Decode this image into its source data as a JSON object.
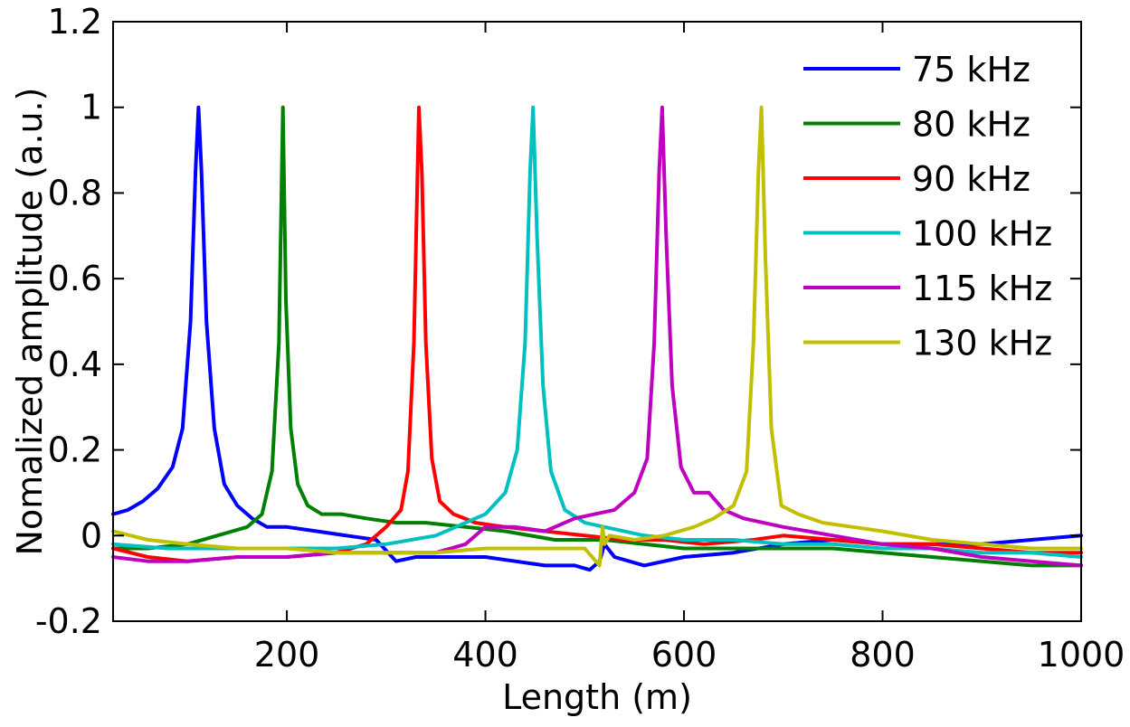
{
  "chart_data": {
    "type": "line",
    "title": "",
    "xlabel": "Length (m)",
    "ylabel": "Nomalized amplitude (a.u.)",
    "xlim": [
      25,
      1000
    ],
    "ylim": [
      -0.2,
      1.2
    ],
    "x_ticks": [
      200,
      400,
      600,
      800,
      1000
    ],
    "y_ticks": [
      -0.2,
      0,
      0.2,
      0.4,
      0.6,
      0.8,
      1,
      1.2
    ],
    "x_tick_labels": [
      "200",
      "400",
      "600",
      "800",
      "1000"
    ],
    "y_tick_labels": [
      "-0.2",
      "0",
      "0.2",
      "0.4",
      "0.6",
      "0.8",
      "1",
      "1.2"
    ],
    "grid": false,
    "legend_position": "top-right",
    "series": [
      {
        "name": "75 kHz",
        "color": "#0000ff",
        "x": [
          25,
          40,
          55,
          70,
          85,
          95,
          103,
          108,
          111,
          114,
          119,
          127,
          137,
          150,
          165,
          180,
          200,
          230,
          260,
          290,
          310,
          330,
          360,
          400,
          430,
          460,
          490,
          505,
          515,
          520,
          530,
          560,
          600,
          650,
          700,
          750,
          800,
          850,
          900,
          950,
          1000
        ],
        "y": [
          0.05,
          0.06,
          0.08,
          0.11,
          0.16,
          0.25,
          0.5,
          0.85,
          1.0,
          0.85,
          0.5,
          0.25,
          0.12,
          0.07,
          0.04,
          0.02,
          0.02,
          0.01,
          0.0,
          -0.01,
          -0.06,
          -0.05,
          -0.05,
          -0.05,
          -0.06,
          -0.07,
          -0.07,
          -0.08,
          -0.06,
          -0.02,
          -0.05,
          -0.07,
          -0.05,
          -0.04,
          -0.02,
          -0.01,
          -0.02,
          -0.02,
          -0.02,
          -0.01,
          0.0
        ]
      },
      {
        "name": "80 kHz",
        "color": "#008000",
        "x": [
          25,
          60,
          100,
          130,
          160,
          175,
          185,
          192,
          196,
          199,
          204,
          211,
          221,
          235,
          255,
          280,
          310,
          340,
          380,
          420,
          470,
          520,
          560,
          600,
          650,
          700,
          750,
          800,
          850,
          900,
          950,
          1000
        ],
        "y": [
          -0.03,
          -0.03,
          -0.02,
          0.0,
          0.02,
          0.05,
          0.15,
          0.45,
          1.0,
          0.55,
          0.25,
          0.12,
          0.07,
          0.05,
          0.05,
          0.04,
          0.03,
          0.03,
          0.02,
          0.01,
          -0.01,
          -0.01,
          -0.02,
          -0.03,
          -0.03,
          -0.03,
          -0.03,
          -0.04,
          -0.05,
          -0.06,
          -0.07,
          -0.07
        ]
      },
      {
        "name": "90 kHz",
        "color": "#ff0000",
        "x": [
          25,
          60,
          100,
          150,
          200,
          250,
          280,
          300,
          315,
          322,
          328,
          333,
          336,
          340,
          346,
          354,
          368,
          390,
          420,
          460,
          500,
          540,
          580,
          620,
          670,
          700,
          750,
          800,
          850,
          900,
          950,
          1000
        ],
        "y": [
          -0.03,
          -0.05,
          -0.06,
          -0.05,
          -0.05,
          -0.04,
          -0.02,
          0.02,
          0.06,
          0.15,
          0.45,
          1.0,
          0.85,
          0.45,
          0.18,
          0.08,
          0.05,
          0.03,
          0.02,
          0.01,
          0.0,
          -0.01,
          -0.01,
          -0.02,
          -0.01,
          0.0,
          -0.01,
          -0.02,
          -0.02,
          -0.03,
          -0.04,
          -0.04
        ]
      },
      {
        "name": "100 kHz",
        "color": "#00c0c0",
        "x": [
          25,
          80,
          150,
          200,
          250,
          300,
          350,
          380,
          400,
          420,
          432,
          440,
          445,
          448,
          452,
          458,
          466,
          480,
          500,
          520,
          560,
          600,
          650,
          700,
          750,
          800,
          850,
          900,
          950,
          1000
        ],
        "y": [
          -0.02,
          -0.03,
          -0.03,
          -0.03,
          -0.03,
          -0.02,
          0.0,
          0.03,
          0.05,
          0.1,
          0.2,
          0.45,
          0.85,
          1.0,
          0.7,
          0.35,
          0.15,
          0.06,
          0.03,
          0.02,
          0.0,
          -0.01,
          -0.01,
          -0.02,
          -0.02,
          -0.03,
          -0.03,
          -0.04,
          -0.04,
          -0.05
        ]
      },
      {
        "name": "115 kHz",
        "color": "#c000c0",
        "x": [
          25,
          60,
          100,
          150,
          200,
          250,
          300,
          350,
          380,
          400,
          430,
          460,
          490,
          510,
          530,
          550,
          563,
          570,
          575,
          578,
          582,
          588,
          597,
          610,
          625,
          640,
          660,
          700,
          750,
          800,
          850,
          900,
          950,
          1000
        ],
        "y": [
          -0.05,
          -0.06,
          -0.06,
          -0.05,
          -0.05,
          -0.04,
          -0.04,
          -0.04,
          -0.02,
          0.02,
          0.02,
          0.01,
          0.04,
          0.05,
          0.06,
          0.1,
          0.18,
          0.45,
          0.85,
          1.0,
          0.7,
          0.35,
          0.16,
          0.1,
          0.1,
          0.06,
          0.04,
          0.02,
          0.0,
          -0.02,
          -0.03,
          -0.05,
          -0.06,
          -0.07
        ]
      },
      {
        "name": "130 kHz",
        "color": "#c0c000",
        "x": [
          25,
          60,
          100,
          150,
          200,
          250,
          300,
          350,
          400,
          450,
          500,
          515,
          518,
          520,
          525,
          550,
          580,
          610,
          630,
          650,
          663,
          670,
          675,
          678,
          682,
          688,
          698,
          715,
          740,
          770,
          800,
          850,
          900,
          950,
          1000
        ],
        "y": [
          0.01,
          -0.01,
          -0.02,
          -0.03,
          -0.03,
          -0.04,
          -0.04,
          -0.04,
          -0.03,
          -0.03,
          -0.03,
          -0.07,
          0.02,
          -0.02,
          0.0,
          -0.01,
          0.0,
          0.02,
          0.04,
          0.07,
          0.15,
          0.45,
          0.85,
          1.0,
          0.65,
          0.25,
          0.07,
          0.05,
          0.03,
          0.02,
          0.01,
          -0.01,
          -0.02,
          -0.03,
          -0.03
        ]
      }
    ]
  }
}
